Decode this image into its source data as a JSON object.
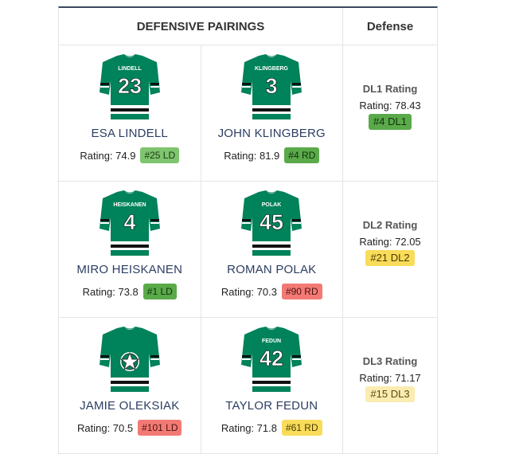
{
  "header": {
    "pairings_label": "DEFENSIVE PAIRINGS",
    "defense_label": "Defense"
  },
  "colors": {
    "jersey_green": "#00825a",
    "stripe_black": "#111111",
    "badge_green": "#5aaa4a",
    "badge_lightgreen": "#7fc46f",
    "badge_red": "#f37a74",
    "badge_yellow": "#f8dc5a",
    "badge_paleyellow": "#fbecb2"
  },
  "pairings": [
    {
      "players": [
        {
          "name": "ESA LINDELL",
          "jersey_name": "LINDELL",
          "number": "23",
          "rating_label": "Rating: 74.9",
          "badge": "#25 LD",
          "badge_color": "lightgreen"
        },
        {
          "name": "JOHN KLINGBERG",
          "jersey_name": "KLINGBERG",
          "number": "3",
          "rating_label": "Rating: 81.9",
          "badge": "#4 RD",
          "badge_color": "green"
        }
      ],
      "dl_title": "DL1 Rating",
      "dl_rating": "Rating: 78.43",
      "dl_badge": "#4 DL1",
      "dl_badge_color": "green"
    },
    {
      "players": [
        {
          "name": "MIRO HEISKANEN",
          "jersey_name": "HEISKANEN",
          "number": "4",
          "rating_label": "Rating: 73.8",
          "badge": "#1 LD",
          "badge_color": "green"
        },
        {
          "name": "ROMAN POLAK",
          "jersey_name": "POLAK",
          "number": "45",
          "rating_label": "Rating: 70.3",
          "badge": "#90 RD",
          "badge_color": "red"
        }
      ],
      "dl_title": "DL2 Rating",
      "dl_rating": "Rating: 72.05",
      "dl_badge": "#21 DL2",
      "dl_badge_color": "yellow"
    },
    {
      "players": [
        {
          "name": "JAMIE OLEKSIAK",
          "jersey_name": "",
          "number": "",
          "logo": "star-logo",
          "rating_label": "Rating: 70.5",
          "badge": "#101 LD",
          "badge_color": "red"
        },
        {
          "name": "TAYLOR FEDUN",
          "jersey_name": "FEDUN",
          "number": "42",
          "rating_label": "Rating: 71.8",
          "badge": "#61 RD",
          "badge_color": "yellow"
        }
      ],
      "dl_title": "DL3 Rating",
      "dl_rating": "Rating: 71.17",
      "dl_badge": "#15 DL3",
      "dl_badge_color": "paleyellow"
    }
  ]
}
